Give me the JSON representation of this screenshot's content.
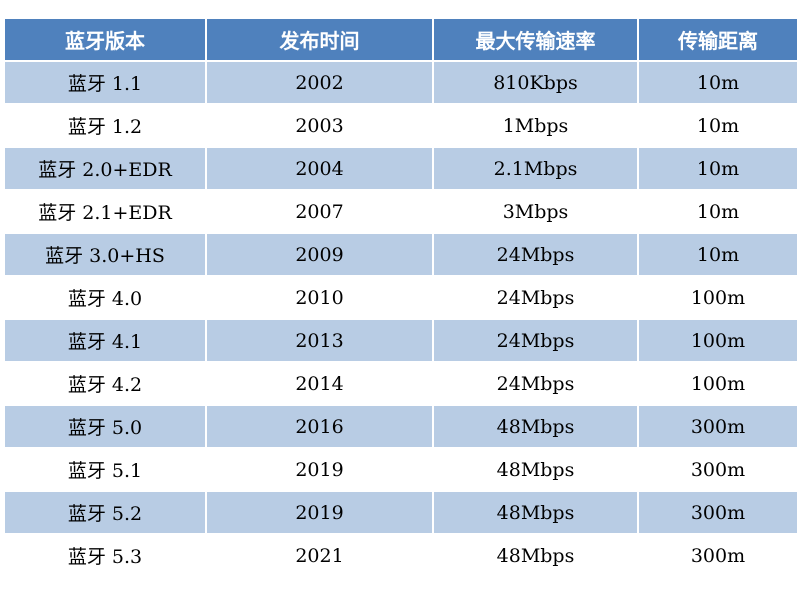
{
  "table": {
    "headers": [
      "蓝牙版本",
      "发布时间",
      "最大传输速率",
      "传输距离"
    ],
    "rows": [
      [
        "蓝牙 1.1",
        "2002",
        "810Kbps",
        "10m"
      ],
      [
        "蓝牙 1.2",
        "2003",
        "1Mbps",
        "10m"
      ],
      [
        "蓝牙 2.0+EDR",
        "2004",
        "2.1Mbps",
        "10m"
      ],
      [
        "蓝牙 2.1+EDR",
        "2007",
        "3Mbps",
        "10m"
      ],
      [
        "蓝牙 3.0+HS",
        "2009",
        "24Mbps",
        "10m"
      ],
      [
        "蓝牙 4.0",
        "2010",
        "24Mbps",
        "100m"
      ],
      [
        "蓝牙 4.1",
        "2013",
        "24Mbps",
        "100m"
      ],
      [
        "蓝牙 4.2",
        "2014",
        "24Mbps",
        "100m"
      ],
      [
        "蓝牙 5.0",
        "2016",
        "48Mbps",
        "300m"
      ],
      [
        "蓝牙 5.1",
        "2019",
        "48Mbps",
        "300m"
      ],
      [
        "蓝牙 5.2",
        "2019",
        "48Mbps",
        "300m"
      ],
      [
        "蓝牙 5.3",
        "2021",
        "48Mbps",
        "300m"
      ]
    ],
    "colors": {
      "header_bg": "#4f81bd",
      "header_text": "#ffffff",
      "row_band": "#b8cce4",
      "row_plain": "#ffffff"
    }
  }
}
